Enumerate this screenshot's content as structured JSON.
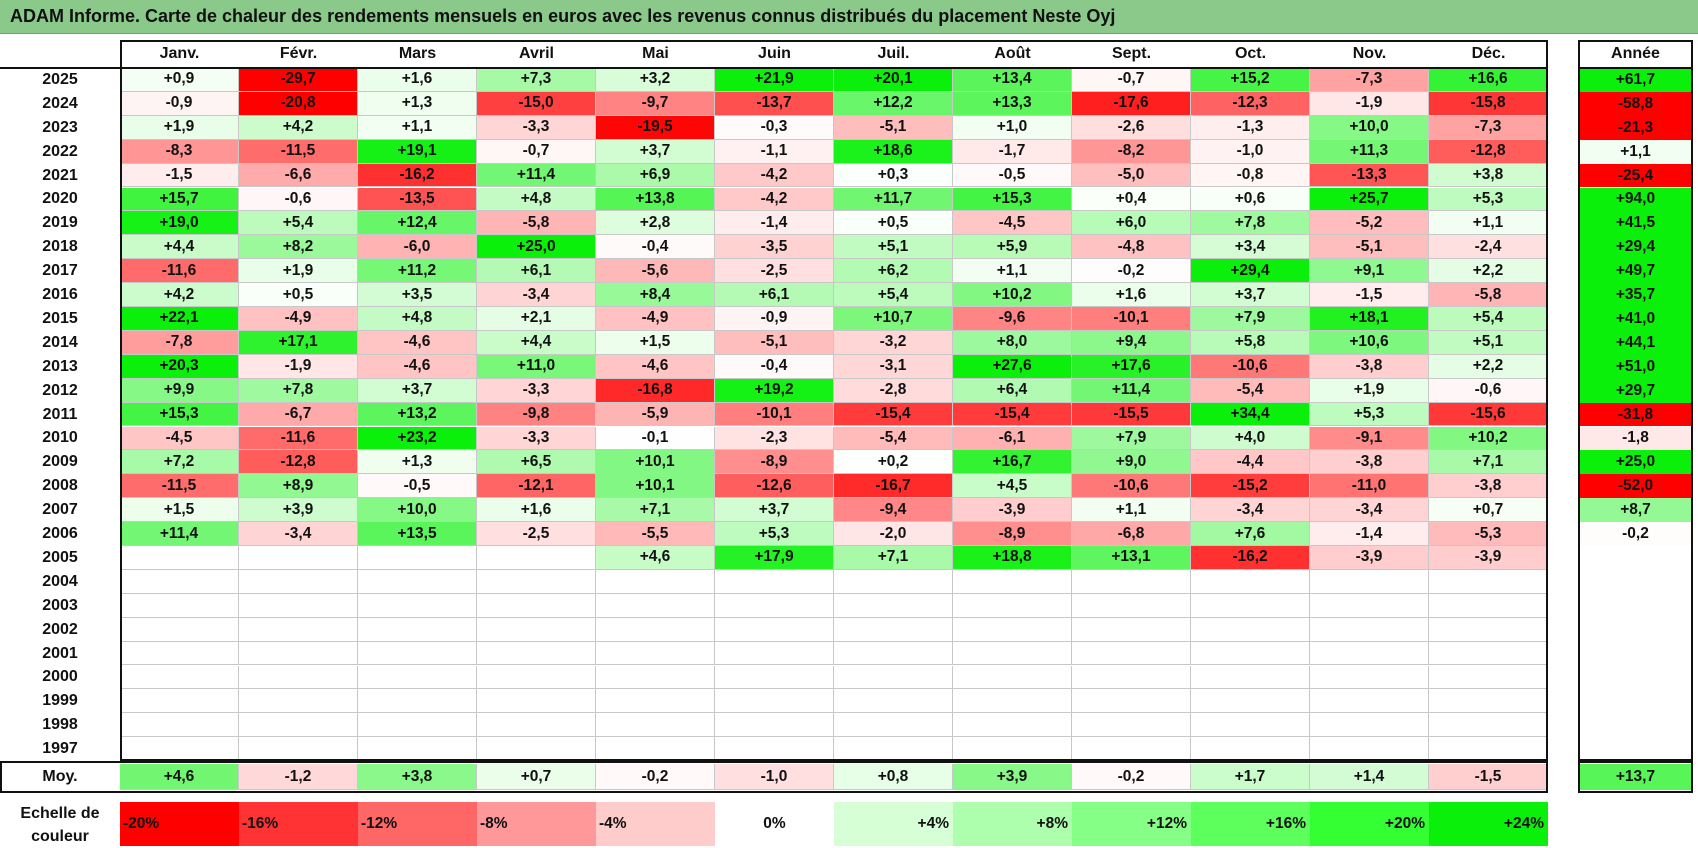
{
  "title": "ADAM Informe. Carte de chaleur des rendements mensuels en euros avec les revenus connus distribués du placement Neste Oyj",
  "chart_data": {
    "type": "heatmap",
    "title": "ADAM Informe. Carte de chaleur des rendements mensuels en euros avec les revenus connus distribués du placement Neste Oyj",
    "columns": [
      "Janv.",
      "Févr.",
      "Mars",
      "Avril",
      "Mai",
      "Juin",
      "Juil.",
      "Août",
      "Sept.",
      "Oct.",
      "Nov.",
      "Déc."
    ],
    "year_header": "Année",
    "rows": [
      {
        "year": "2025",
        "values": [
          "+0,9",
          "-29,7",
          "+1,6",
          "+7,3",
          "+3,2",
          "+21,9",
          "+20,1",
          "+13,4",
          "-0,7",
          "+15,2",
          "-7,3",
          "+16,6"
        ],
        "annual": "+61,7"
      },
      {
        "year": "2024",
        "values": [
          "-0,9",
          "-20,8",
          "+1,3",
          "-15,0",
          "-9,7",
          "-13,7",
          "+12,2",
          "+13,3",
          "-17,6",
          "-12,3",
          "-1,9",
          "-15,8"
        ],
        "annual": "-58,8"
      },
      {
        "year": "2023",
        "values": [
          "+1,9",
          "+4,2",
          "+1,1",
          "-3,3",
          "-19,5",
          "-0,3",
          "-5,1",
          "+1,0",
          "-2,6",
          "-1,3",
          "+10,0",
          "-7,3"
        ],
        "annual": "-21,3"
      },
      {
        "year": "2022",
        "values": [
          "-8,3",
          "-11,5",
          "+19,1",
          "-0,7",
          "+3,7",
          "-1,1",
          "+18,6",
          "-1,7",
          "-8,2",
          "-1,0",
          "+11,3",
          "-12,8"
        ],
        "annual": "+1,1"
      },
      {
        "year": "2021",
        "values": [
          "-1,5",
          "-6,6",
          "-16,2",
          "+11,4",
          "+6,9",
          "-4,2",
          "+0,3",
          "-0,5",
          "-5,0",
          "-0,8",
          "-13,3",
          "+3,8"
        ],
        "annual": "-25,4"
      },
      {
        "year": "2020",
        "values": [
          "+15,7",
          "-0,6",
          "-13,5",
          "+4,8",
          "+13,8",
          "-4,2",
          "+11,7",
          "+15,3",
          "+0,4",
          "+0,6",
          "+25,7",
          "+5,3"
        ],
        "annual": "+94,0"
      },
      {
        "year": "2019",
        "values": [
          "+19,0",
          "+5,4",
          "+12,4",
          "-5,8",
          "+2,8",
          "-1,4",
          "+0,5",
          "-4,5",
          "+6,0",
          "+7,8",
          "-5,2",
          "+1,1"
        ],
        "annual": "+41,5"
      },
      {
        "year": "2018",
        "values": [
          "+4,4",
          "+8,2",
          "-6,0",
          "+25,0",
          "-0,4",
          "-3,5",
          "+5,1",
          "+5,9",
          "-4,8",
          "+3,4",
          "-5,1",
          "-2,4"
        ],
        "annual": "+29,4"
      },
      {
        "year": "2017",
        "values": [
          "-11,6",
          "+1,9",
          "+11,2",
          "+6,1",
          "-5,6",
          "-2,5",
          "+6,2",
          "+1,1",
          "-0,2",
          "+29,4",
          "+9,1",
          "+2,2"
        ],
        "annual": "+49,7"
      },
      {
        "year": "2016",
        "values": [
          "+4,2",
          "+0,5",
          "+3,5",
          "-3,4",
          "+8,4",
          "+6,1",
          "+5,4",
          "+10,2",
          "+1,6",
          "+3,7",
          "-1,5",
          "-5,8"
        ],
        "annual": "+35,7"
      },
      {
        "year": "2015",
        "values": [
          "+22,1",
          "-4,9",
          "+4,8",
          "+2,1",
          "-4,9",
          "-0,9",
          "+10,7",
          "-9,6",
          "-10,1",
          "+7,9",
          "+18,1",
          "+5,4"
        ],
        "annual": "+41,0"
      },
      {
        "year": "2014",
        "values": [
          "-7,8",
          "+17,1",
          "-4,6",
          "+4,4",
          "+1,5",
          "-5,1",
          "-3,2",
          "+8,0",
          "+9,4",
          "+5,8",
          "+10,6",
          "+5,1"
        ],
        "annual": "+44,1"
      },
      {
        "year": "2013",
        "values": [
          "+20,3",
          "-1,9",
          "-4,6",
          "+11,0",
          "-4,6",
          "-0,4",
          "-3,1",
          "+27,6",
          "+17,6",
          "-10,6",
          "-3,8",
          "+2,2"
        ],
        "annual": "+51,0"
      },
      {
        "year": "2012",
        "values": [
          "+9,9",
          "+7,8",
          "+3,7",
          "-3,3",
          "-16,8",
          "+19,2",
          "-2,8",
          "+6,4",
          "+11,4",
          "-5,4",
          "+1,9",
          "-0,6"
        ],
        "annual": "+29,7"
      },
      {
        "year": "2011",
        "values": [
          "+15,3",
          "-6,7",
          "+13,2",
          "-9,8",
          "-5,9",
          "-10,1",
          "-15,4",
          "-15,4",
          "-15,5",
          "+34,4",
          "+5,3",
          "-15,6"
        ],
        "annual": "-31,8"
      },
      {
        "year": "2010",
        "values": [
          "-4,5",
          "-11,6",
          "+23,2",
          "-3,3",
          "-0,1",
          "-2,3",
          "-5,4",
          "-6,1",
          "+7,9",
          "+4,0",
          "-9,1",
          "+10,2"
        ],
        "annual": "-1,8"
      },
      {
        "year": "2009",
        "values": [
          "+7,2",
          "-12,8",
          "+1,3",
          "+6,5",
          "+10,1",
          "-8,9",
          "+0,2",
          "+16,7",
          "+9,0",
          "-4,4",
          "-3,8",
          "+7,1"
        ],
        "annual": "+25,0"
      },
      {
        "year": "2008",
        "values": [
          "-11,5",
          "+8,9",
          "-0,5",
          "-12,1",
          "+10,1",
          "-12,6",
          "-16,7",
          "+4,5",
          "-10,6",
          "-15,2",
          "-11,0",
          "-3,8"
        ],
        "annual": "-52,0"
      },
      {
        "year": "2007",
        "values": [
          "+1,5",
          "+3,9",
          "+10,0",
          "+1,6",
          "+7,1",
          "+3,7",
          "-9,4",
          "-3,9",
          "+1,1",
          "-3,4",
          "-3,4",
          "+0,7"
        ],
        "annual": "+8,7"
      },
      {
        "year": "2006",
        "values": [
          "+11,4",
          "-3,4",
          "+13,5",
          "-2,5",
          "-5,5",
          "+5,3",
          "-2,0",
          "-8,9",
          "-6,8",
          "+7,6",
          "-1,4",
          "-5,3"
        ],
        "annual": "-0,2"
      },
      {
        "year": "2005",
        "values": [
          "",
          "",
          "",
          "",
          "+4,6",
          "+17,9",
          "+7,1",
          "+18,8",
          "+13,1",
          "-16,2",
          "-3,9",
          "-3,9"
        ],
        "annual": ""
      },
      {
        "year": "2004",
        "values": [
          "",
          "",
          "",
          "",
          "",
          "",
          "",
          "",
          "",
          "",
          "",
          ""
        ],
        "annual": ""
      },
      {
        "year": "2003",
        "values": [
          "",
          "",
          "",
          "",
          "",
          "",
          "",
          "",
          "",
          "",
          "",
          ""
        ],
        "annual": ""
      },
      {
        "year": "2002",
        "values": [
          "",
          "",
          "",
          "",
          "",
          "",
          "",
          "",
          "",
          "",
          "",
          ""
        ],
        "annual": ""
      },
      {
        "year": "2001",
        "values": [
          "",
          "",
          "",
          "",
          "",
          "",
          "",
          "",
          "",
          "",
          "",
          ""
        ],
        "annual": ""
      },
      {
        "year": "2000",
        "values": [
          "",
          "",
          "",
          "",
          "",
          "",
          "",
          "",
          "",
          "",
          "",
          ""
        ],
        "annual": ""
      },
      {
        "year": "1999",
        "values": [
          "",
          "",
          "",
          "",
          "",
          "",
          "",
          "",
          "",
          "",
          "",
          ""
        ],
        "annual": ""
      },
      {
        "year": "1998",
        "values": [
          "",
          "",
          "",
          "",
          "",
          "",
          "",
          "",
          "",
          "",
          "",
          ""
        ],
        "annual": ""
      },
      {
        "year": "1997",
        "values": [
          "",
          "",
          "",
          "",
          "",
          "",
          "",
          "",
          "",
          "",
          "",
          ""
        ],
        "annual": ""
      }
    ],
    "average": {
      "label": "Moy.",
      "values": [
        "+4,6",
        "-1,2",
        "+3,8",
        "+0,7",
        "-0,2",
        "-1,0",
        "+0,8",
        "+3,9",
        "-0,2",
        "+1,7",
        "+1,4",
        "-1,5"
      ],
      "annual": "+13,7"
    },
    "color_scale": {
      "label_line1": "Echelle de",
      "label_line2": "couleur",
      "steps": [
        {
          "label": "-20%",
          "value": -20,
          "color": "#ff0000"
        },
        {
          "label": "-16%",
          "value": -16,
          "color": "#ff3333"
        },
        {
          "label": "-12%",
          "value": -12,
          "color": "#ff6666"
        },
        {
          "label": "-8%",
          "value": -8,
          "color": "#ff9999"
        },
        {
          "label": "-4%",
          "value": -4,
          "color": "#ffcccc"
        },
        {
          "label": "0%",
          "value": 0,
          "color": "#ffffff"
        },
        {
          "label": "+4%",
          "value": 4,
          "color": "#d6ffd6"
        },
        {
          "label": "+8%",
          "value": 8,
          "color": "#adffad"
        },
        {
          "label": "+12%",
          "value": 12,
          "color": "#85ff85"
        },
        {
          "label": "+16%",
          "value": 16,
          "color": "#5cff5c"
        },
        {
          "label": "+20%",
          "value": 20,
          "color": "#33ff33"
        },
        {
          "label": "+24%",
          "value": 24,
          "color": "#0af00a"
        }
      ]
    }
  }
}
